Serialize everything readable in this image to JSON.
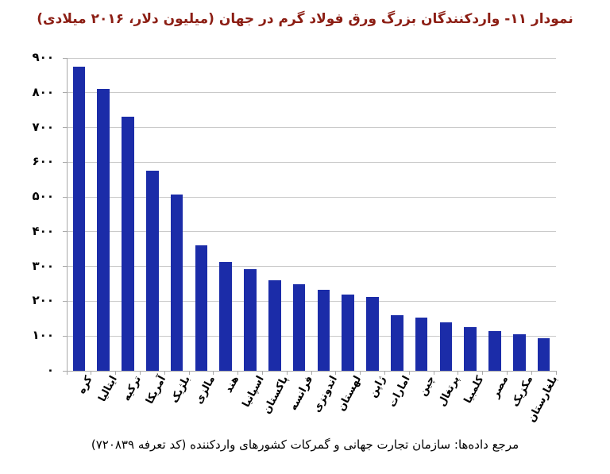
{
  "title": "نمودار ۱۱- واردکنندگان بزرگ ورق فولاد گرم در جهان (میلیون دلار، ۲۰۱۶ میلادی)",
  "source": "مرجع داده‌ها: سازمان تجارت جهانی و گمرکات کشورهای واردکننده (کد تعرفه ۷۲۰۸۳۹)",
  "colors": {
    "title": "#8C1E14",
    "bar": "#1B2CA8",
    "gridline": "#C9C9C9",
    "axis": "#A9A9A9",
    "text": "#000000",
    "background": "#FFFFFF"
  },
  "chart_data": {
    "type": "bar",
    "title": "نمودار ۱۱- واردکنندگان بزرگ ورق فولاد گرم در جهان (میلیون دلار، ۲۰۱۶ میلادی)",
    "categories": [
      "کره",
      "ایتالیا",
      "ترکیه",
      "آمریکا",
      "بلژیک",
      "مالزی",
      "هند",
      "اسپانیا",
      "پاکستان",
      "فرانسه",
      "اندونزی",
      "لهستان",
      "ژاپن",
      "امارات",
      "چین",
      "پرتغال",
      "کلمبیا",
      "مصر",
      "مکزیک",
      "بلغارستان"
    ],
    "values": [
      875,
      810,
      732,
      575,
      507,
      362,
      312,
      292,
      261,
      248,
      234,
      219,
      212,
      160,
      153,
      140,
      125,
      114,
      106,
      93
    ],
    "xlabel": "",
    "ylabel": "",
    "ylim": [
      0,
      900
    ],
    "yticks": [
      0,
      100,
      200,
      300,
      400,
      500,
      600,
      700,
      800,
      900
    ],
    "ytick_labels": [
      "۰",
      "۱۰۰",
      "۲۰۰",
      "۳۰۰",
      "۴۰۰",
      "۵۰۰",
      "۶۰۰",
      "۷۰۰",
      "۸۰۰",
      "۹۰۰"
    ],
    "grid": true,
    "legend": false,
    "bar_orientation": "vertical",
    "x_label_rotation_deg": -62
  }
}
